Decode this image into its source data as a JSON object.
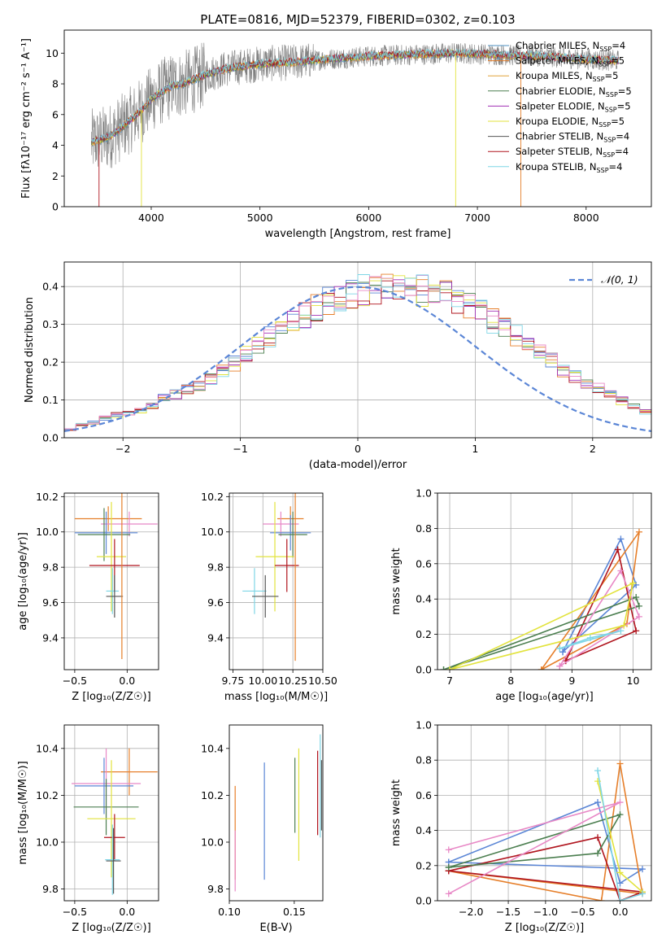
{
  "figure": {
    "title": "PLATE=0816, MJD=52379, FIBERID=0302, z=0.103"
  },
  "colors": {
    "chabrier_miles": "#4e8fbf",
    "salpeter_miles": "#e67f2a",
    "kroupa_miles": "#e0a43a",
    "chabrier_elodie": "#4c7f50",
    "salpeter_elodie": "#a02fb5",
    "kroupa_elodie": "#e2e33d",
    "chabrier_stelib": "#555555",
    "salpeter_stelib": "#b0151e",
    "kroupa_stelib": "#7fd6e6",
    "data_grey": "#808080",
    "gauss": "#5b86d6",
    "hist": [
      "#5b86d6",
      "#e67f2a",
      "#4c7f50",
      "#a02fb5",
      "#e2e33d",
      "#b0151e",
      "#7fd6e6",
      "#e888c6"
    ],
    "err": [
      "#e67f2a",
      "#e888c6",
      "#5b86d6",
      "#4c7f50",
      "#e2e33d",
      "#b0151e",
      "#7fd6e6",
      "#555555"
    ]
  },
  "chart_data": [
    {
      "id": "spectrum",
      "type": "line",
      "xlabel": "wavelength [Angstrom, rest frame]",
      "ylabel": "Flux [fλ10⁻¹⁷ erg cm⁻² s⁻¹ A⁻¹]",
      "xlim": [
        3200,
        8600
      ],
      "ylim": [
        0,
        11.5
      ],
      "xticks": [
        4000,
        5000,
        6000,
        7000,
        8000
      ],
      "yticks": [
        0,
        2,
        4,
        6,
        8,
        10
      ],
      "legend_position": "upper right",
      "legend": [
        {
          "label": "Chabrier MILES, N",
          "sub": "SSP",
          "tail": "=4",
          "color": "#4e8fbf"
        },
        {
          "label": "Salpeter MILES, N",
          "sub": "SSP",
          "tail": "=5",
          "color": "#e67f2a"
        },
        {
          "label": "Kroupa MILES, N",
          "sub": "SSP",
          "tail": "=5",
          "color": "#e0a43a"
        },
        {
          "label": "Chabrier ELODIE, N",
          "sub": "SSP",
          "tail": "=5",
          "color": "#4c7f50"
        },
        {
          "label": "Salpeter ELODIE, N",
          "sub": "SSP",
          "tail": "=5",
          "color": "#a02fb5"
        },
        {
          "label": "Kroupa ELODIE, N",
          "sub": "SSP",
          "tail": "=5",
          "color": "#e2e33d"
        },
        {
          "label": "Chabrier STELIB, N",
          "sub": "SSP",
          "tail": "=4",
          "color": "#555555"
        },
        {
          "label": "Salpeter STELIB, N",
          "sub": "SSP",
          "tail": "=4",
          "color": "#b0151e"
        },
        {
          "label": "Kroupa STELIB, N",
          "sub": "SSP",
          "tail": "=4",
          "color": "#7fd6e6"
        }
      ],
      "continuum": {
        "x": [
          3450,
          3600,
          3700,
          3800,
          3900,
          4000,
          4100,
          4200,
          4300,
          4400,
          4500,
          4700,
          5000,
          5300,
          5600,
          6000,
          6400,
          6800,
          7200,
          7600,
          8000,
          8300
        ],
        "y": [
          4.2,
          4.5,
          5.0,
          5.6,
          6.2,
          7.0,
          7.5,
          7.9,
          8.0,
          8.3,
          8.6,
          9.0,
          9.3,
          9.4,
          9.6,
          9.8,
          9.9,
          10.0,
          9.9,
          9.8,
          9.6,
          9.5
        ]
      }
    },
    {
      "id": "residuals",
      "type": "line",
      "xlabel": "(data-model)/error",
      "ylabel": "Normed distribution",
      "xlim": [
        -2.5,
        2.5
      ],
      "ylim": [
        0,
        0.465
      ],
      "xticks": [
        -2,
        -1,
        0,
        1,
        2
      ],
      "xticklabels": [
        "−2",
        "−1",
        "0",
        "1",
        "2"
      ],
      "yticks": [
        0.0,
        0.1,
        0.2,
        0.3,
        0.4
      ],
      "grid": true,
      "legend": "𝒩(0, 1)",
      "bin_width": 0.1,
      "hist_base": [
        0.022,
        0.035,
        0.04,
        0.052,
        0.06,
        0.065,
        0.072,
        0.085,
        0.105,
        0.115,
        0.13,
        0.14,
        0.155,
        0.175,
        0.195,
        0.225,
        0.25,
        0.27,
        0.295,
        0.31,
        0.325,
        0.345,
        0.365,
        0.375,
        0.385,
        0.39,
        0.395,
        0.398,
        0.4,
        0.395,
        0.39,
        0.385,
        0.375,
        0.365,
        0.35,
        0.33,
        0.31,
        0.29,
        0.27,
        0.25,
        0.225,
        0.205,
        0.18,
        0.16,
        0.145,
        0.13,
        0.115,
        0.098,
        0.085,
        0.07
      ]
    },
    {
      "id": "age_vs_Z",
      "type": "scatter",
      "xlabel": "Z [log₁₀(Z/Z☉)]",
      "ylabel": "age  [log₁₀(age/yr)]",
      "xlim": [
        -0.6,
        0.3
      ],
      "ylim": [
        9.22,
        10.22
      ],
      "xticks": [
        -0.5,
        0.0
      ],
      "xticklabels": [
        "−0.5",
        "0.0"
      ],
      "yticks": [
        9.4,
        9.6,
        9.8,
        10.0,
        10.2
      ],
      "grid": true,
      "points": [
        {
          "x": -0.18,
          "y": 10.075,
          "xerr": 0.32,
          "yerr": 0.07
        },
        {
          "x": 0.02,
          "y": 10.045,
          "xerr": 0.27,
          "yerr": 0.07
        },
        {
          "x": -0.2,
          "y": 9.995,
          "xerr": 0.3,
          "yerr": 0.12
        },
        {
          "x": -0.22,
          "y": 9.985,
          "xerr": 0.25,
          "yerr": 0.15
        },
        {
          "x": -0.15,
          "y": 9.86,
          "xerr": 0.14,
          "yerr": 0.31
        },
        {
          "x": -0.12,
          "y": 9.81,
          "xerr": 0.24,
          "yerr": 0.15
        },
        {
          "x": -0.14,
          "y": 9.665,
          "xerr": 0.06,
          "yerr": 0.13
        },
        {
          "x": -0.12,
          "y": 9.635,
          "xerr": 0.08,
          "yerr": 0.12
        },
        {
          "x": -0.05,
          "y": 9.83,
          "xerr": 0.0,
          "yerr": 0.55
        }
      ]
    },
    {
      "id": "age_vs_mass",
      "type": "scatter",
      "xlabel": "mass [log₁₀(M/M☉)]",
      "ylabel": "",
      "xlim": [
        9.72,
        10.5
      ],
      "ylim": [
        9.22,
        10.22
      ],
      "xticks": [
        9.75,
        10.0,
        10.25,
        10.5
      ],
      "xticklabels": [
        "9.75",
        "10.00",
        "10.25",
        "10.50"
      ],
      "yticks": [
        9.4,
        9.6,
        9.8,
        10.0,
        10.2
      ],
      "grid": true,
      "points": [
        {
          "x": 10.23,
          "y": 10.075,
          "xerr": 0.11,
          "yerr": 0.07
        },
        {
          "x": 10.15,
          "y": 10.045,
          "xerr": 0.15,
          "yerr": 0.07
        },
        {
          "x": 10.23,
          "y": 9.995,
          "xerr": 0.17,
          "yerr": 0.1
        },
        {
          "x": 10.25,
          "y": 9.985,
          "xerr": 0.12,
          "yerr": 0.13
        },
        {
          "x": 10.1,
          "y": 9.86,
          "xerr": 0.16,
          "yerr": 0.31
        },
        {
          "x": 10.2,
          "y": 9.81,
          "xerr": 0.1,
          "yerr": 0.15
        },
        {
          "x": 9.93,
          "y": 9.665,
          "xerr": 0.1,
          "yerr": 0.13
        },
        {
          "x": 10.02,
          "y": 9.635,
          "xerr": 0.11,
          "yerr": 0.12
        },
        {
          "x": 10.27,
          "y": 9.82,
          "xerr": 0.0,
          "yerr": 0.55
        }
      ]
    },
    {
      "id": "weight_vs_age",
      "type": "line",
      "xlabel": "age  [log₁₀(age/yr)]",
      "ylabel": "mass weight",
      "xlim": [
        6.8,
        10.3
      ],
      "ylim": [
        0,
        1.0
      ],
      "xticks": [
        7,
        8,
        9,
        10
      ],
      "yticks": [
        0.0,
        0.2,
        0.4,
        0.6,
        0.8,
        1.0
      ],
      "grid": true,
      "series": [
        {
          "x": [
            8.85,
            9.8,
            10.05,
            8.85
          ],
          "y": [
            0.1,
            0.74,
            0.48,
            0.1
          ]
        },
        {
          "x": [
            8.5,
            10.1,
            9.9,
            8.5
          ],
          "y": [
            0.0,
            0.78,
            0.26,
            0.0
          ]
        },
        {
          "x": [
            8.9,
            9.75,
            10.05,
            8.9
          ],
          "y": [
            0.05,
            0.68,
            0.22,
            0.05
          ]
        },
        {
          "x": [
            6.9,
            10.1,
            10.05,
            6.9
          ],
          "y": [
            0.0,
            0.36,
            0.41,
            0.0
          ]
        },
        {
          "x": [
            8.8,
            9.8,
            10.1,
            8.8
          ],
          "y": [
            0.02,
            0.56,
            0.3,
            0.02
          ]
        },
        {
          "x": [
            7.0,
            9.85,
            10.0,
            7.0
          ],
          "y": [
            0.0,
            0.25,
            0.49,
            0.0
          ]
        },
        {
          "x": [
            8.8,
            9.3,
            9.8,
            8.8
          ],
          "y": [
            0.12,
            0.18,
            0.22,
            0.12
          ]
        }
      ]
    },
    {
      "id": "mass_vs_Z",
      "type": "scatter",
      "xlabel": "Z [log₁₀(Z/Z☉)]",
      "ylabel": "mass [log₁₀(M/M☉)]",
      "xlim": [
        -0.6,
        0.3
      ],
      "ylim": [
        9.75,
        10.5
      ],
      "xticks": [
        -0.5,
        0.0
      ],
      "xticklabels": [
        "−0.5",
        "0.0"
      ],
      "yticks": [
        9.8,
        10.0,
        10.2,
        10.4
      ],
      "grid": true,
      "points": [
        {
          "x": 0.02,
          "y": 10.3,
          "xerr": 0.27,
          "yerr": 0.1
        },
        {
          "x": -0.2,
          "y": 10.25,
          "xerr": 0.33,
          "yerr": 0.15
        },
        {
          "x": -0.22,
          "y": 10.24,
          "xerr": 0.28,
          "yerr": 0.12
        },
        {
          "x": -0.2,
          "y": 10.15,
          "xerr": 0.31,
          "yerr": 0.12
        },
        {
          "x": -0.15,
          "y": 10.1,
          "xerr": 0.23,
          "yerr": 0.25
        },
        {
          "x": -0.12,
          "y": 10.02,
          "xerr": 0.1,
          "yerr": 0.1
        },
        {
          "x": -0.14,
          "y": 9.925,
          "xerr": 0.07,
          "yerr": 0.15
        },
        {
          "x": -0.13,
          "y": 9.92,
          "xerr": 0.07,
          "yerr": 0.14
        }
      ]
    },
    {
      "id": "mass_vs_ebv",
      "type": "scatter",
      "xlabel": "E(B-V)",
      "ylabel": "",
      "xlim": [
        0.1,
        0.172
      ],
      "ylim": [
        9.75,
        10.5
      ],
      "xticks": [
        0.1,
        0.15
      ],
      "xticklabels": [
        "0.10",
        "0.15"
      ],
      "yticks": [
        9.8,
        10.0,
        10.2,
        10.4
      ],
      "grid": false,
      "points": [
        {
          "x": 0.1045,
          "y": 10.04,
          "xerr": 0,
          "yerr": 0.2
        },
        {
          "x": 0.1045,
          "y": 9.92,
          "xerr": 0,
          "yerr": 0.13
        },
        {
          "x": 0.127,
          "y": 10.09,
          "xerr": 0,
          "yerr": 0.25
        },
        {
          "x": 0.1505,
          "y": 10.2,
          "xerr": 0,
          "yerr": 0.16
        },
        {
          "x": 0.1535,
          "y": 10.16,
          "xerr": 0,
          "yerr": 0.24
        },
        {
          "x": 0.168,
          "y": 10.21,
          "xerr": 0,
          "yerr": 0.18
        },
        {
          "x": 0.17,
          "y": 10.24,
          "xerr": 0,
          "yerr": 0.22
        },
        {
          "x": 0.171,
          "y": 10.2,
          "xerr": 0,
          "yerr": 0.15
        }
      ]
    },
    {
      "id": "weight_vs_Z",
      "type": "line",
      "xlabel": "Z [log₁₀(Z/Z☉)]",
      "ylabel": "mass weight",
      "xlim": [
        -2.45,
        0.42
      ],
      "ylim": [
        0,
        1.0
      ],
      "xticks": [
        -2.0,
        -1.5,
        -1.0,
        -0.5,
        0.0
      ],
      "xticklabels": [
        "−2.0",
        "−1.5",
        "−1.0",
        "−0.5",
        "0.0"
      ],
      "yticks": [
        0.0,
        0.2,
        0.4,
        0.6,
        0.8,
        1.0
      ],
      "grid": true,
      "series": [
        {
          "x": [
            -2.3,
            -0.3,
            0.0,
            0.3,
            -2.3
          ],
          "y": [
            0.22,
            0.56,
            0.1,
            0.18,
            0.22
          ]
        },
        {
          "x": [
            -2.3,
            -0.25,
            0.0,
            0.3,
            -2.3
          ],
          "y": [
            0.17,
            0.0,
            0.78,
            0.04,
            0.17
          ]
        },
        {
          "x": [
            -2.3,
            -0.3,
            0.0,
            0.3,
            -2.3
          ],
          "y": [
            0.17,
            0.36,
            0.0,
            0.05,
            0.17
          ]
        },
        {
          "x": [
            -2.3,
            -0.3,
            0.0,
            -2.3
          ],
          "y": [
            0.19,
            0.27,
            0.49,
            0.19
          ]
        },
        {
          "x": [
            -2.3,
            0.0,
            -2.3
          ],
          "y": [
            0.04,
            0.56,
            0.29
          ]
        },
        {
          "x": [
            -0.3,
            0.0,
            0.3
          ],
          "y": [
            0.68,
            0.16,
            0.05
          ]
        },
        {
          "x": [
            -0.3,
            0.0,
            0.3
          ],
          "y": [
            0.74,
            0.0,
            0.04
          ]
        }
      ]
    }
  ]
}
